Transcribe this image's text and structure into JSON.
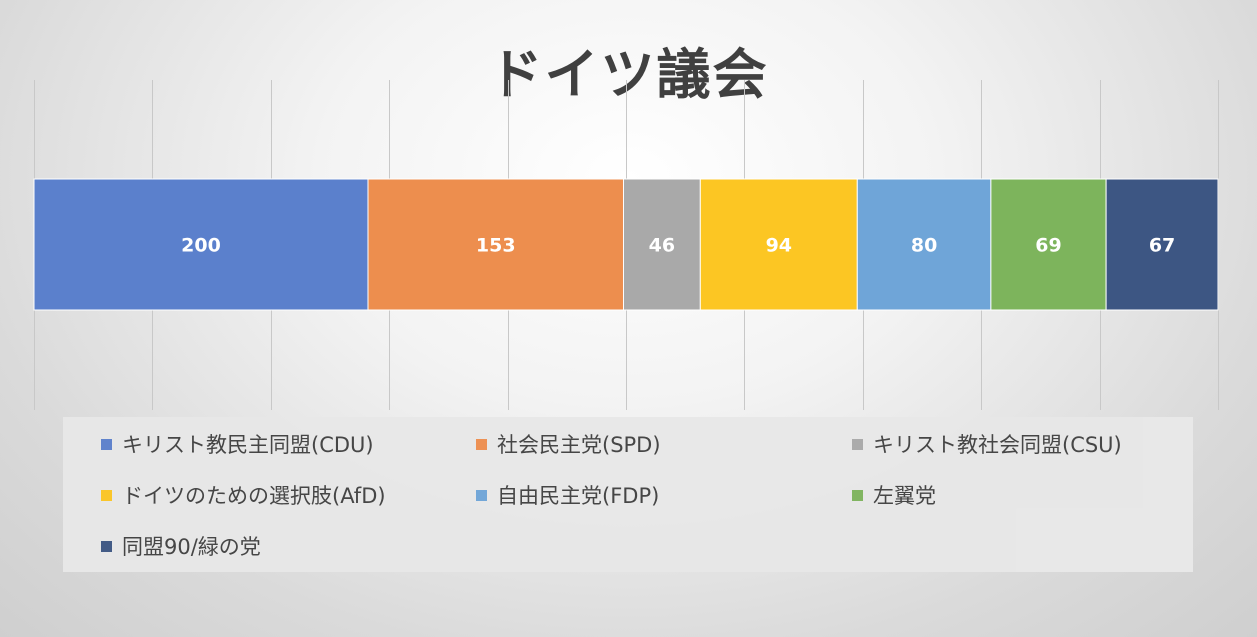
{
  "chart_data": {
    "type": "bar",
    "orientation": "horizontal",
    "stacked": true,
    "title": "ドイツ議会",
    "categories": [
      ""
    ],
    "series": [
      {
        "name": "キリスト教民主同盟(CDU)",
        "values": [
          200
        ],
        "color": "#5b80cc"
      },
      {
        "name": "社会民主党(SPD)",
        "values": [
          153
        ],
        "color": "#ed8e4e"
      },
      {
        "name": "キリスト教社会同盟(CSU)",
        "values": [
          46
        ],
        "color": "#a9a9a9"
      },
      {
        "name": "ドイツのための選択肢(AfD)",
        "values": [
          94
        ],
        "color": "#fcc623"
      },
      {
        "name": "自由民主党(FDP)",
        "values": [
          80
        ],
        "color": "#6fa5d8"
      },
      {
        "name": "左翼党",
        "values": [
          69
        ],
        "color": "#7db45c"
      },
      {
        "name": "同盟90/緑の党",
        "values": [
          67
        ],
        "color": "#3d5683"
      }
    ],
    "xlim": [
      0,
      709
    ],
    "grid": true,
    "legend_position": "bottom",
    "data_labels": true
  }
}
